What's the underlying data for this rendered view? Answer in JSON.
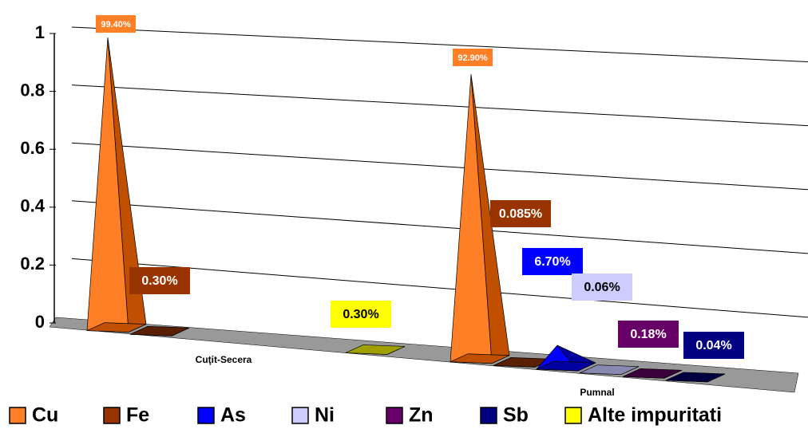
{
  "chart_data": {
    "type": "pyramid3d",
    "categories": [
      "Cuţit-Secera",
      "Pumnal"
    ],
    "series": [
      {
        "name": "Cu",
        "color": "#ff7f27",
        "values": [
          0.994,
          0.929
        ],
        "value_labels": [
          "99.40%",
          "92.90%"
        ]
      },
      {
        "name": "Fe",
        "color": "#993300",
        "values": [
          0.003,
          0.00085
        ],
        "value_labels": [
          "0.30%",
          "0.085%"
        ]
      },
      {
        "name": "As",
        "color": "#0000ff",
        "values": [
          null,
          0.067
        ],
        "value_labels": [
          null,
          "6.70%"
        ]
      },
      {
        "name": "Ni",
        "color": "#ccccff",
        "values": [
          null,
          0.0006
        ],
        "value_labels": [
          null,
          "0.06%"
        ]
      },
      {
        "name": "Zn",
        "color": "#660066",
        "values": [
          null,
          0.0018
        ],
        "value_labels": [
          null,
          "0.18%"
        ]
      },
      {
        "name": "Sb",
        "color": "#000080",
        "values": [
          null,
          0.0004
        ],
        "value_labels": [
          null,
          "0.04%"
        ]
      },
      {
        "name": "Alte impuritati",
        "color": "#ffff00",
        "values": [
          0.003,
          null
        ],
        "value_labels": [
          "0.30%",
          null
        ]
      }
    ],
    "ylim": [
      0,
      1
    ],
    "yticks": [
      0,
      0.2,
      0.4,
      0.6,
      0.8,
      1
    ],
    "grid": true,
    "legend": "bottom"
  }
}
